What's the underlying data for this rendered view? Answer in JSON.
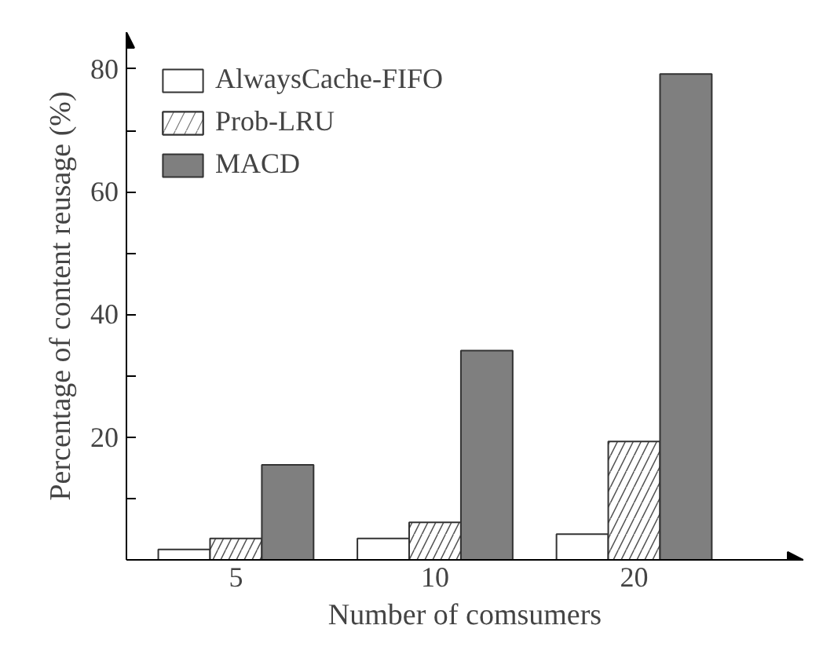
{
  "chart_data": {
    "type": "bar",
    "xlabel": "Number of comsumers",
    "ylabel": "Percentage of content reusage (%)",
    "categories": [
      "5",
      "10",
      "20"
    ],
    "series": [
      {
        "name": "AlwaysCache-FIFO",
        "color": "#ffffff",
        "values": [
          1.7,
          3.5,
          4.2
        ]
      },
      {
        "name": "Prob-LRU",
        "color": "#ffffff",
        "values": [
          3.5,
          6.1,
          19.3
        ]
      },
      {
        "name": "MACD",
        "color": "#7f7f7f",
        "values": [
          15.5,
          34.1,
          79.2
        ]
      }
    ],
    "ylim": [
      0,
      86
    ],
    "yticks": [
      {
        "value": 10,
        "label": null
      },
      20,
      {
        "value": 30,
        "label": null
      },
      40,
      {
        "value": 50,
        "label": null
      },
      60,
      {
        "value": 70,
        "label": null
      },
      80
    ],
    "legend": "top left",
    "grid": false
  }
}
